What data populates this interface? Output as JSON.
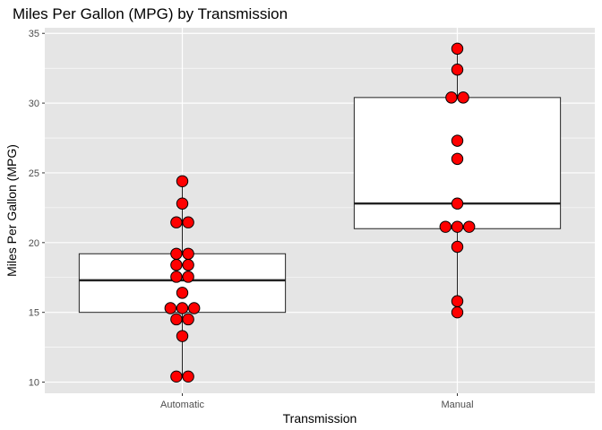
{
  "chart_data": {
    "type": "boxplot",
    "title": "Miles Per Gallon (MPG) by Transmission",
    "xlabel": "Transmission",
    "ylabel": "Miles Per Gallon (MPG)",
    "categories": [
      "Automatic",
      "Manual"
    ],
    "ylim": [
      9.2,
      35.4
    ],
    "yticks": [
      10,
      15,
      20,
      25,
      30,
      35
    ],
    "grid": true,
    "legend": "none",
    "colors": {
      "panel": "#e5e5e5",
      "grid": "#ffffff",
      "box_fill": "#ffffff",
      "box_stroke": "#222222",
      "point_fill": "#ff0000",
      "point_stroke": "#000000"
    },
    "boxes": [
      {
        "category": "Automatic",
        "min": 10.4,
        "q1": 15.0,
        "median": 17.3,
        "q3": 19.2,
        "max": 24.4
      },
      {
        "category": "Manual",
        "min": 15.0,
        "q1": 21.0,
        "median": 22.8,
        "q3": 30.4,
        "max": 33.9
      }
    ],
    "points": [
      {
        "category": "Automatic",
        "values": [
          10.4,
          10.4,
          13.3,
          14.3,
          14.7,
          15.2,
          15.2,
          15.5,
          16.4,
          17.3,
          17.8,
          18.1,
          18.7,
          19.2,
          19.2,
          21.4,
          21.5,
          22.8,
          24.4
        ]
      },
      {
        "category": "Manual",
        "values": [
          15.0,
          15.8,
          19.7,
          21.0,
          21.0,
          21.4,
          22.8,
          26.0,
          27.3,
          30.4,
          30.4,
          32.4,
          33.9
        ]
      }
    ]
  }
}
